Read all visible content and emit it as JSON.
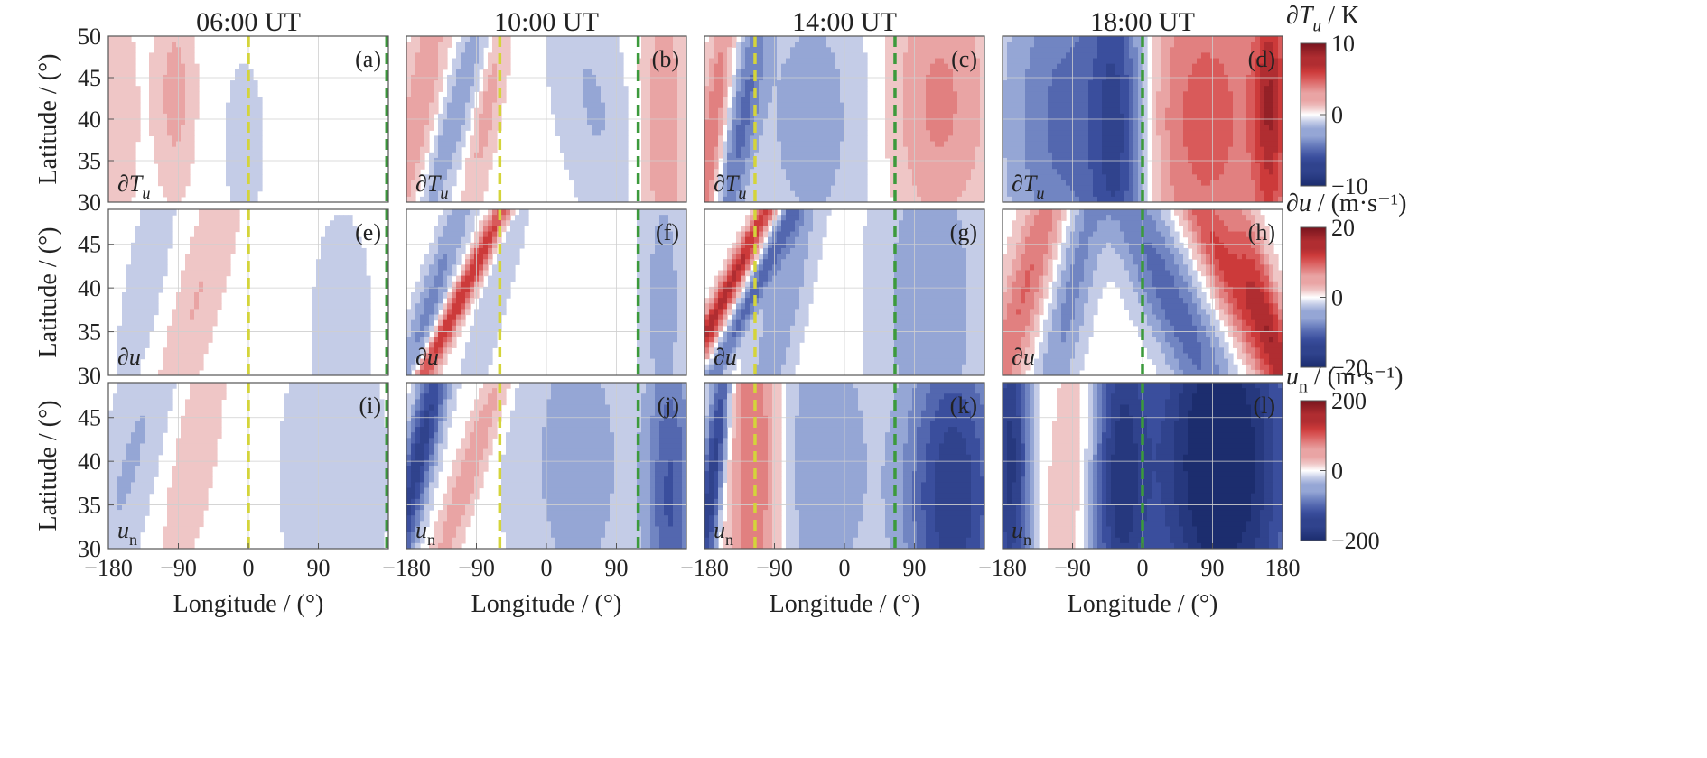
{
  "chart_data": {
    "type": "heatmap",
    "layout": "3 rows x 4 columns of filled-contour panels, dashed vertical marker lines",
    "column_titles": [
      "06:00 UT",
      "10:00 UT",
      "14:00 UT",
      "18:00 UT"
    ],
    "xlabel": "Longitude / (°)",
    "ylabel": "Latitude / (°)",
    "xlim": [
      -180,
      180
    ],
    "x_ticks": [
      -180,
      -90,
      0,
      90
    ],
    "x_ticks_last": [
      -180,
      -90,
      0,
      90,
      180
    ],
    "x_tick_labels": [
      "−180",
      "−90",
      "0",
      "90"
    ],
    "x_tick_labels_last": [
      "−180",
      "−90",
      "0",
      "90",
      "180"
    ],
    "rows": [
      {
        "variable_label": "∂T",
        "variable_sub": "u",
        "ylim": [
          30,
          50
        ],
        "y_ticks": [
          30,
          35,
          40,
          45,
          50
        ],
        "y_tick_labels": [
          "30",
          "35",
          "40",
          "45",
          "50"
        ],
        "colorbar": {
          "title_main": "∂T",
          "title_sub": "u",
          "title_unit": " / K",
          "ticks": [
            "10",
            "0",
            "−10"
          ],
          "range": [
            -10,
            10
          ]
        },
        "panels": [
          {
            "label": "(a)",
            "dashed_lines": [
              {
                "lon": 0,
                "color": "#d4d43a"
              },
              {
                "lon": 178,
                "color": "#3c9a3c"
              }
            ],
            "blobs": [
              {
                "lon": -95,
                "lat": 43,
                "wlon": 18,
                "wlat": 8,
                "v": 2.5,
                "tilt": 0
              },
              {
                "lon": -170,
                "lat": 40,
                "wlon": 20,
                "wlat": 12,
                "v": 1.5,
                "tilt": 0
              },
              {
                "lon": -5,
                "lat": 37,
                "wlon": 25,
                "wlat": 10,
                "v": -1.0,
                "tilt": 0
              }
            ]
          },
          {
            "label": "(b)",
            "dashed_lines": [
              {
                "lon": -60,
                "color": "#d4d43a"
              },
              {
                "lon": 118,
                "color": "#3c9a3c"
              }
            ],
            "blobs": [
              {
                "lon": -165,
                "lat": 40,
                "wlon": 18,
                "wlat": 14,
                "v": 3.0,
                "tilt": 0.3
              },
              {
                "lon": -120,
                "lat": 40,
                "wlon": 16,
                "wlat": 14,
                "v": -3.0,
                "tilt": 0.5
              },
              {
                "lon": -75,
                "lat": 42,
                "wlon": 12,
                "wlat": 10,
                "v": 2.5,
                "tilt": 0.3
              },
              {
                "lon": 60,
                "lat": 42,
                "wlon": 35,
                "wlat": 12,
                "v": -2.0,
                "tilt": -0.3
              },
              {
                "lon": 150,
                "lat": 38,
                "wlon": 22,
                "wlat": 14,
                "v": 3.0,
                "tilt": 0
              }
            ]
          },
          {
            "label": "(c)",
            "dashed_lines": [
              {
                "lon": -115,
                "color": "#d4d43a"
              },
              {
                "lon": 65,
                "color": "#3c9a3c"
              }
            ],
            "blobs": [
              {
                "lon": -170,
                "lat": 38,
                "wlon": 12,
                "wlat": 14,
                "v": 4.5,
                "tilt": 0.2
              },
              {
                "lon": -135,
                "lat": 38,
                "wlon": 14,
                "wlat": 14,
                "v": -4.0,
                "tilt": 0.3
              },
              {
                "lon": -40,
                "lat": 40,
                "wlon": 60,
                "wlat": 14,
                "v": -2.5,
                "tilt": 0
              },
              {
                "lon": 120,
                "lat": 42,
                "wlon": 50,
                "wlat": 12,
                "v": 3.5,
                "tilt": 0
              }
            ]
          },
          {
            "label": "(d)",
            "dashed_lines": [
              {
                "lon": 0,
                "color": "#3c9a3c"
              }
            ],
            "blobs": [
              {
                "lon": -95,
                "lat": 40,
                "wlon": 60,
                "wlat": 16,
                "v": -5.0,
                "tilt": 0
              },
              {
                "lon": -30,
                "lat": 38,
                "wlon": 25,
                "wlat": 18,
                "v": -6.0,
                "tilt": 0
              },
              {
                "lon": 80,
                "lat": 40,
                "wlon": 70,
                "wlat": 16,
                "v": 5.0,
                "tilt": 0
              },
              {
                "lon": 165,
                "lat": 42,
                "wlon": 15,
                "wlat": 12,
                "v": 6.0,
                "tilt": 0
              }
            ]
          }
        ]
      },
      {
        "variable_label": "∂u",
        "variable_sub": "",
        "ylim": [
          30,
          49
        ],
        "y_ticks": [
          30,
          35,
          40,
          45
        ],
        "y_tick_labels": [
          "30",
          "35",
          "40",
          "45"
        ],
        "colorbar": {
          "title_main": "∂u",
          "title_sub": "",
          "title_unit": " / (m·s⁻¹)",
          "ticks": [
            "20",
            "0",
            "−20"
          ],
          "range": [
            -20,
            20
          ]
        },
        "panels": [
          {
            "label": "(e)",
            "dashed_lines": [
              {
                "lon": 0,
                "color": "#d4d43a"
              },
              {
                "lon": 178,
                "color": "#3c9a3c"
              }
            ],
            "blobs": [
              {
                "lon": -70,
                "lat": 38,
                "wlon": 22,
                "wlat": 14,
                "v": 4.0,
                "tilt": 0.5
              },
              {
                "lon": -130,
                "lat": 40,
                "wlon": 30,
                "wlat": 14,
                "v": -2.0,
                "tilt": 0.3
              },
              {
                "lon": 120,
                "lat": 35,
                "wlon": 40,
                "wlat": 14,
                "v": -2.0,
                "tilt": 0
              }
            ]
          },
          {
            "label": "(f)",
            "dashed_lines": [
              {
                "lon": -60,
                "color": "#d4d43a"
              },
              {
                "lon": 118,
                "color": "#3c9a3c"
              }
            ],
            "blobs": [
              {
                "lon": -110,
                "lat": 39,
                "wlon": 10,
                "wlat": 16,
                "v": 14.0,
                "tilt": 0.9
              },
              {
                "lon": -150,
                "lat": 38,
                "wlon": 14,
                "wlat": 14,
                "v": -7.0,
                "tilt": 0.6
              },
              {
                "lon": -65,
                "lat": 40,
                "wlon": 15,
                "wlat": 14,
                "v": -3.0,
                "tilt": 0.5
              },
              {
                "lon": 150,
                "lat": 38,
                "wlon": 22,
                "wlat": 14,
                "v": -5.0,
                "tilt": 0
              }
            ]
          },
          {
            "label": "(g)",
            "dashed_lines": [
              {
                "lon": -115,
                "color": "#d4d43a"
              },
              {
                "lon": 65,
                "color": "#3c9a3c"
              }
            ],
            "blobs": [
              {
                "lon": -160,
                "lat": 38,
                "wlon": 10,
                "wlat": 16,
                "v": 15.0,
                "tilt": 0.9
              },
              {
                "lon": -125,
                "lat": 38,
                "wlon": 10,
                "wlat": 16,
                "v": -9.0,
                "tilt": 0.9
              },
              {
                "lon": -80,
                "lat": 38,
                "wlon": 20,
                "wlat": 16,
                "v": -6.0,
                "tilt": 0.4
              },
              {
                "lon": 110,
                "lat": 38,
                "wlon": 50,
                "wlat": 16,
                "v": -6.0,
                "tilt": 0
              }
            ]
          },
          {
            "label": "(h)",
            "dashed_lines": [
              {
                "lon": 0,
                "color": "#3c9a3c"
              }
            ],
            "blobs": [
              {
                "lon": -150,
                "lat": 40,
                "wlon": 20,
                "wlat": 14,
                "v": 9.0,
                "tilt": 0.5
              },
              {
                "lon": -90,
                "lat": 40,
                "wlon": 20,
                "wlat": 14,
                "v": -7.0,
                "tilt": 0.4
              },
              {
                "lon": 40,
                "lat": 38,
                "wlon": 30,
                "wlat": 14,
                "v": -10.0,
                "tilt": -0.8
              },
              {
                "lon": 110,
                "lat": 42,
                "wlon": 22,
                "wlat": 12,
                "v": 12.0,
                "tilt": -0.8
              },
              {
                "lon": 165,
                "lat": 36,
                "wlon": 15,
                "wlat": 12,
                "v": 10.0,
                "tilt": -0.5
              }
            ]
          }
        ]
      },
      {
        "variable_label": "u",
        "variable_sub": "n",
        "ylim": [
          30,
          49
        ],
        "y_ticks": [
          30,
          35,
          40,
          45
        ],
        "y_tick_labels": [
          "30",
          "35",
          "40",
          "45"
        ],
        "colorbar": {
          "title_main": "u",
          "title_sub": "n",
          "title_unit": " / (m·s⁻¹)",
          "ticks": [
            "200",
            "0",
            "−200"
          ],
          "range": [
            -200,
            200
          ]
        },
        "panels": [
          {
            "label": "(i)",
            "dashed_lines": [
              {
                "lon": 0,
                "color": "#d4d43a"
              },
              {
                "lon": 178,
                "color": "#3c9a3c"
              }
            ],
            "blobs": [
              {
                "lon": -150,
                "lat": 40,
                "wlon": 30,
                "wlat": 16,
                "v": -40.0,
                "tilt": 0.5
              },
              {
                "lon": -70,
                "lat": 42,
                "wlon": 25,
                "wlat": 12,
                "v": 30.0,
                "tilt": 0.3
              },
              {
                "lon": 110,
                "lat": 38,
                "wlon": 60,
                "wlat": 16,
                "v": -25.0,
                "tilt": 0
              }
            ]
          },
          {
            "label": "(j)",
            "dashed_lines": [
              {
                "lon": -60,
                "color": "#d4d43a"
              },
              {
                "lon": 118,
                "color": "#3c9a3c"
              }
            ],
            "blobs": [
              {
                "lon": -165,
                "lat": 40,
                "wlon": 14,
                "wlat": 16,
                "v": -150.0,
                "tilt": 0.4
              },
              {
                "lon": -95,
                "lat": 40,
                "wlon": 14,
                "wlat": 12,
                "v": 60.0,
                "tilt": 0.6
              },
              {
                "lon": 40,
                "lat": 40,
                "wlon": 60,
                "wlat": 16,
                "v": -50.0,
                "tilt": 0
              },
              {
                "lon": 160,
                "lat": 36,
                "wlon": 22,
                "wlat": 14,
                "v": -110.0,
                "tilt": 0
              }
            ]
          },
          {
            "label": "(k)",
            "dashed_lines": [
              {
                "lon": -115,
                "color": "#d4d43a"
              },
              {
                "lon": 65,
                "color": "#3c9a3c"
              }
            ],
            "blobs": [
              {
                "lon": -170,
                "lat": 38,
                "wlon": 10,
                "wlat": 14,
                "v": -160.0,
                "tilt": 0.2
              },
              {
                "lon": -115,
                "lat": 40,
                "wlon": 25,
                "wlat": 18,
                "v": 100.0,
                "tilt": 0
              },
              {
                "lon": -30,
                "lat": 40,
                "wlon": 50,
                "wlat": 16,
                "v": -60.0,
                "tilt": 0
              },
              {
                "lon": 140,
                "lat": 36,
                "wlon": 45,
                "wlat": 14,
                "v": -160.0,
                "tilt": 0
              }
            ]
          },
          {
            "label": "(l)",
            "dashed_lines": [
              {
                "lon": 0,
                "color": "#3c9a3c"
              }
            ],
            "blobs": [
              {
                "lon": -170,
                "lat": 40,
                "wlon": 18,
                "wlat": 16,
                "v": -170.0,
                "tilt": 0
              },
              {
                "lon": -90,
                "lat": 40,
                "wlon": 22,
                "wlat": 16,
                "v": 40.0,
                "tilt": 0.2
              },
              {
                "lon": -30,
                "lat": 38,
                "wlon": 25,
                "wlat": 16,
                "v": -140.0,
                "tilt": 0
              },
              {
                "lon": 100,
                "lat": 40,
                "wlon": 70,
                "wlat": 18,
                "v": -230.0,
                "tilt": 0
              }
            ]
          }
        ]
      }
    ]
  }
}
